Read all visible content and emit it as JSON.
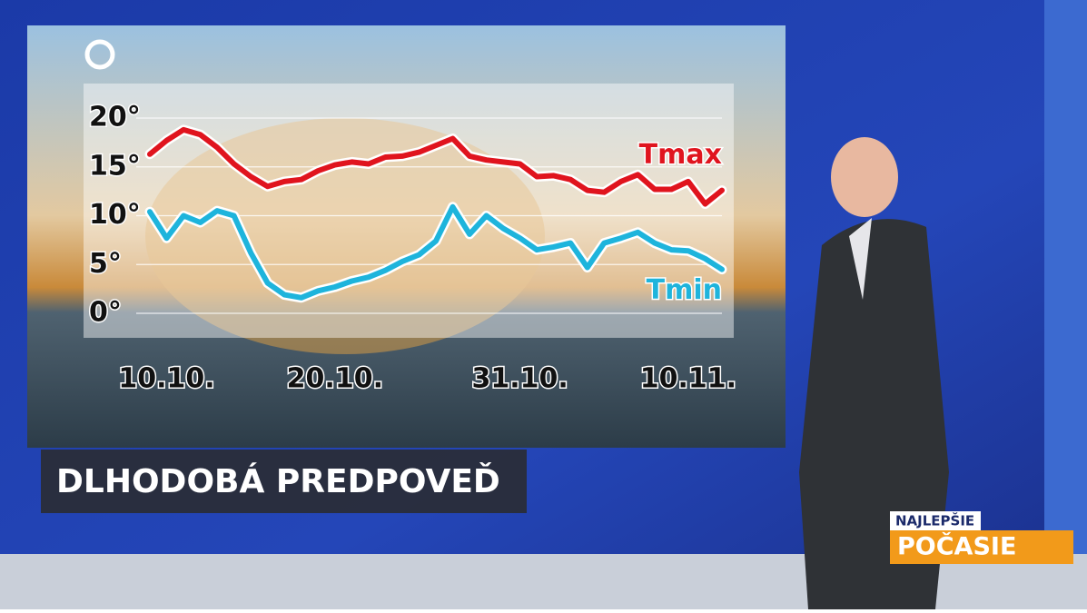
{
  "chart_data": {
    "type": "line",
    "title": "DLHODOBÁ PREDPOVEĎ",
    "categories": [
      null,
      "10.10.",
      null,
      null,
      null,
      null,
      null,
      null,
      null,
      null,
      null,
      "20.10.",
      null,
      null,
      null,
      null,
      null,
      null,
      null,
      null,
      null,
      null,
      "31.10.",
      null,
      null,
      null,
      null,
      null,
      null,
      null,
      null,
      null,
      "10.11.",
      null,
      null
    ],
    "series": [
      {
        "name": "Tmax",
        "color": "#e0141e",
        "values": [
          16.3,
          17.7,
          18.8,
          18.3,
          17.0,
          15.3,
          14.0,
          13.0,
          13.5,
          13.7,
          14.6,
          15.2,
          15.5,
          15.3,
          16.0,
          16.1,
          16.5,
          17.2,
          17.9,
          16.1,
          15.7,
          15.5,
          15.3,
          14.0,
          14.1,
          13.7,
          12.6,
          12.4,
          13.5,
          14.2,
          12.7,
          12.7,
          13.5,
          11.2,
          12.6
        ]
      },
      {
        "name": "Tmin",
        "color": "#1eb4dc",
        "values": [
          10.4,
          7.7,
          10.0,
          9.3,
          10.5,
          10.0,
          6.2,
          3.1,
          1.9,
          1.6,
          2.3,
          2.7,
          3.3,
          3.7,
          4.4,
          5.3,
          6.0,
          7.4,
          10.9,
          8.1,
          10.0,
          8.7,
          7.7,
          6.5,
          6.8,
          7.2,
          4.7,
          7.2,
          7.7,
          8.3,
          7.2,
          6.5,
          6.4,
          5.6,
          4.5
        ]
      }
    ],
    "ylim": [
      0,
      20
    ],
    "yticks": [
      {
        "value": 0,
        "label": "0°"
      },
      {
        "value": 5,
        "label": "5°"
      },
      {
        "value": 10,
        "label": "10°"
      },
      {
        "value": 15,
        "label": "15°"
      },
      {
        "value": 20,
        "label": "20°"
      }
    ],
    "grid": true
  },
  "branding": {
    "line1": "NAJLEPŠIE",
    "line2": "POČASIE"
  }
}
